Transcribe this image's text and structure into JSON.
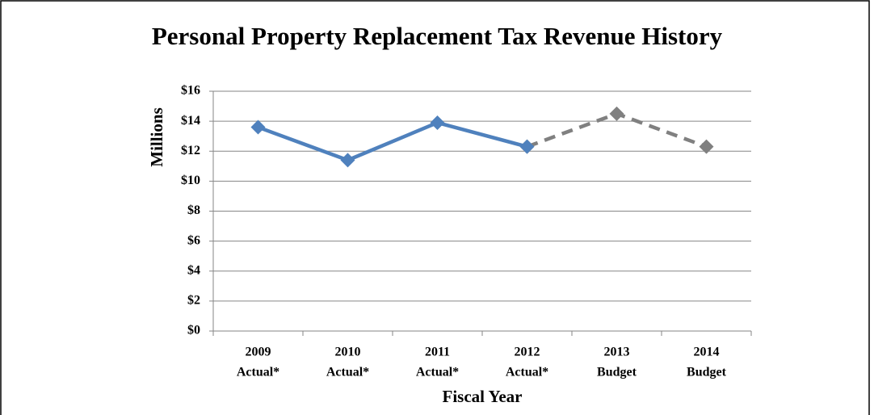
{
  "chart_data": {
    "type": "line",
    "title": "Personal Property Replacement Tax Revenue History",
    "x_label": "Fiscal Year",
    "y_label": "Millions",
    "categories": [
      [
        "2009",
        "Actual*"
      ],
      [
        "2010",
        "Actual*"
      ],
      [
        "2011",
        "Actual*"
      ],
      [
        "2012",
        "Actual*"
      ],
      [
        "2013",
        "Budget"
      ],
      [
        "2014",
        "Budget"
      ]
    ],
    "series": [
      {
        "color": "#4f81bd",
        "dashed": false,
        "values": [
          13.6,
          11.4,
          13.9,
          12.3,
          null,
          null
        ]
      },
      {
        "color": "#808080",
        "dashed": true,
        "values": [
          null,
          null,
          null,
          12.3,
          14.5,
          12.3
        ]
      }
    ],
    "ylim": [
      0,
      16
    ],
    "yticks": [
      {
        "value": 0,
        "label": "$0"
      },
      {
        "value": 2,
        "label": "$2"
      },
      {
        "value": 4,
        "label": "$4"
      },
      {
        "value": 6,
        "label": "$6"
      },
      {
        "value": 8,
        "label": "$8"
      },
      {
        "value": 10,
        "label": "$10"
      },
      {
        "value": 12,
        "label": "$12"
      },
      {
        "value": 14,
        "label": "$14"
      },
      {
        "value": 16,
        "label": "$16"
      }
    ],
    "grid": true
  }
}
